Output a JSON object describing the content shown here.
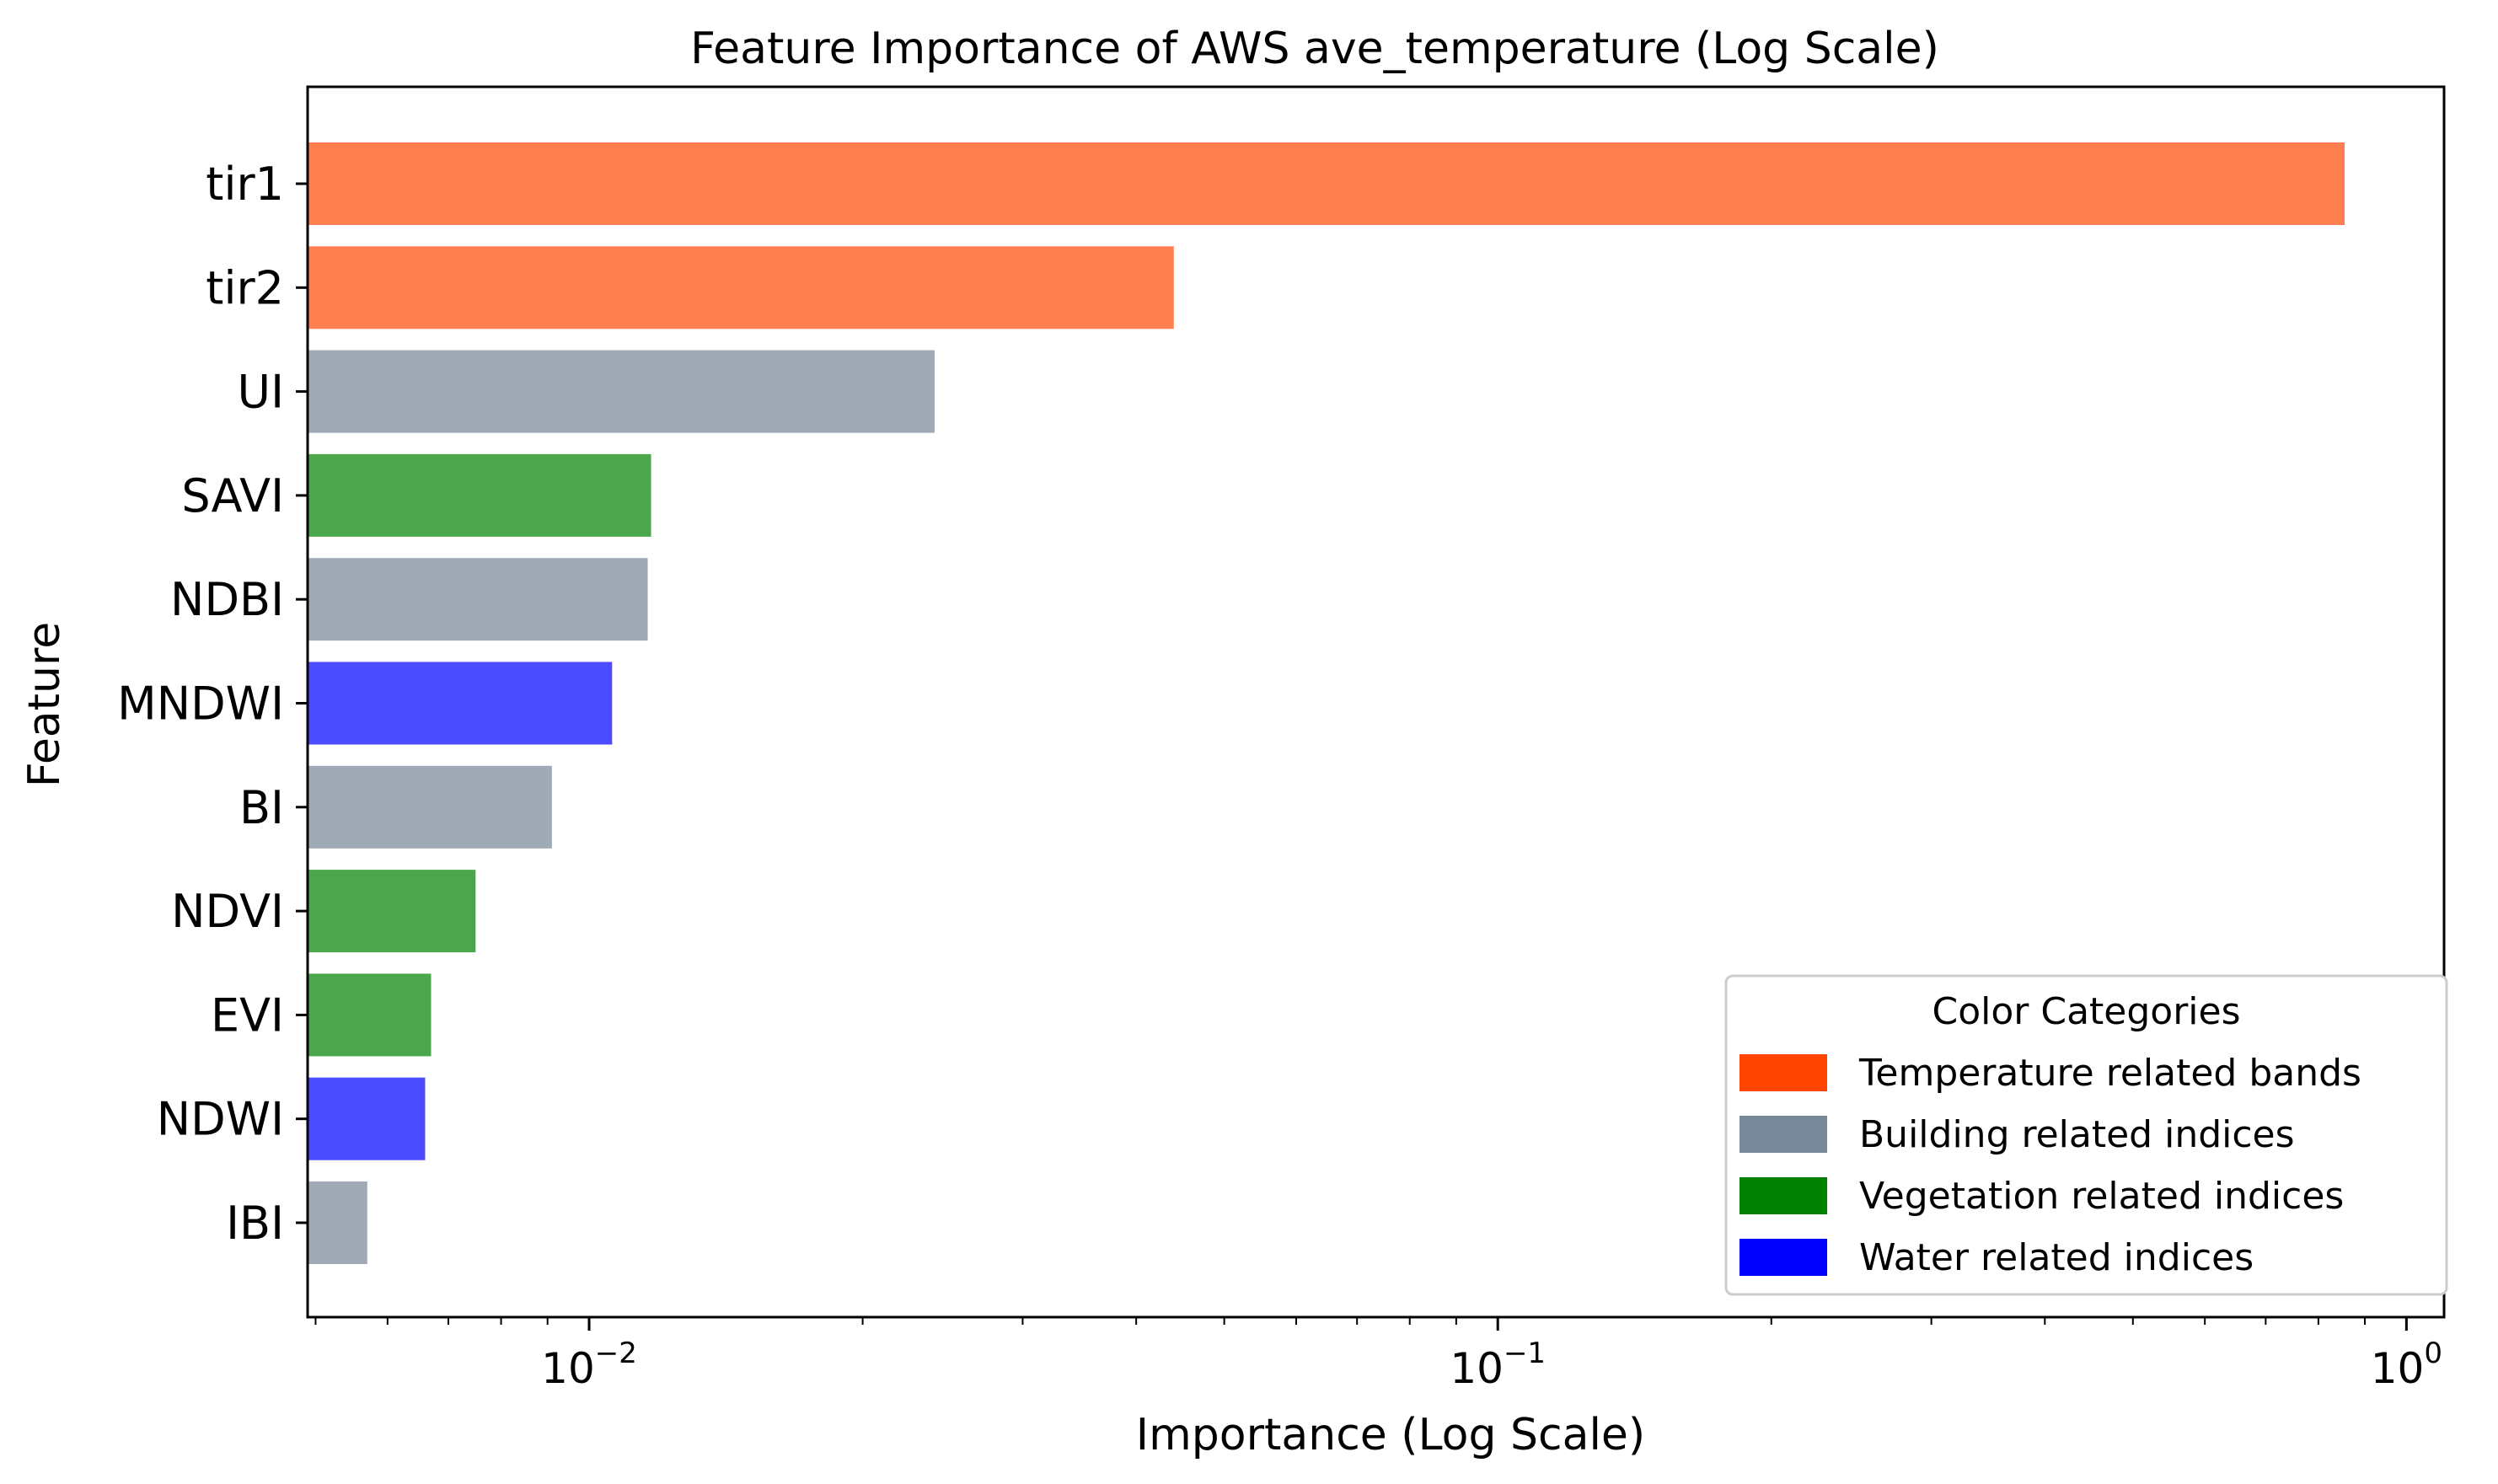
{
  "chart_data": {
    "type": "bar",
    "orientation": "horizontal",
    "title": "Feature Importance of AWS ave_temperature (Log Scale)",
    "xlabel": "Importance (Log Scale)",
    "ylabel": "Feature",
    "xscale": "log",
    "xlim": [
      0.0049,
      1.1
    ],
    "grid": false,
    "categories": [
      "tir1",
      "tir2",
      "UI",
      "SAVI",
      "NDBI",
      "MNDWI",
      "BI",
      "NDVI",
      "EVI",
      "NDWI",
      "IBI"
    ],
    "values": [
      0.855,
      0.044,
      0.024,
      0.0117,
      0.0116,
      0.0106,
      0.0091,
      0.0075,
      0.0067,
      0.0066,
      0.0057
    ],
    "bar_categories": [
      "temperature",
      "temperature",
      "building",
      "vegetation",
      "building",
      "water",
      "building",
      "vegetation",
      "vegetation",
      "water",
      "building"
    ],
    "bar_colors": {
      "temperature": "#ff7f50",
      "building": "#a0aab6",
      "vegetation": "#4ca64c",
      "water": "#4b4bff"
    },
    "x_ticks": [
      {
        "value": 0.01,
        "base": "10",
        "exp": "−2"
      },
      {
        "value": 0.1,
        "base": "10",
        "exp": "−1"
      },
      {
        "value": 1,
        "base": "10",
        "exp": "0"
      }
    ],
    "legend": {
      "title": "Color Categories",
      "position": "lower-right",
      "items": [
        {
          "label": "Temperature related bands",
          "color": "#ff4500"
        },
        {
          "label": "Building related indices",
          "color": "#778899"
        },
        {
          "label": "Vegetation related indices",
          "color": "#008000"
        },
        {
          "label": "Water related indices",
          "color": "#0000ff"
        }
      ]
    }
  }
}
